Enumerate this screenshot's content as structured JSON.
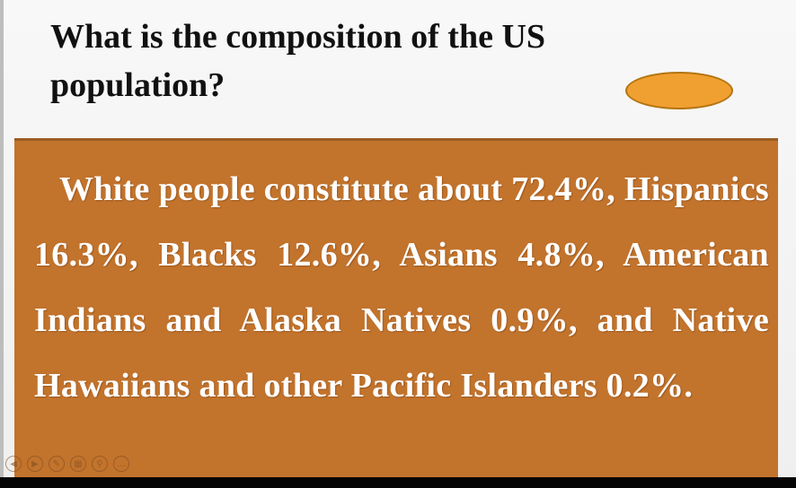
{
  "slide": {
    "title": "What is the composition of the US population?",
    "body": "White people constitute about 72.4%, Hispanics 16.3%, Blacks 12.6%, Asians 4.8%, American Indians and Alaska Natives 0.9%, and Native Hawaiians and other Pacific Islanders 0.2%.",
    "shape_color": "#f0a030",
    "box_color": "#c2732c"
  },
  "player": {
    "controls": [
      {
        "name": "previous-icon",
        "glyph": "◀"
      },
      {
        "name": "next-icon",
        "glyph": "▶"
      },
      {
        "name": "pen-icon",
        "glyph": "✎"
      },
      {
        "name": "slides-icon",
        "glyph": "▦"
      },
      {
        "name": "zoom-icon",
        "glyph": "⚲"
      },
      {
        "name": "more-icon",
        "glyph": "…"
      }
    ]
  }
}
